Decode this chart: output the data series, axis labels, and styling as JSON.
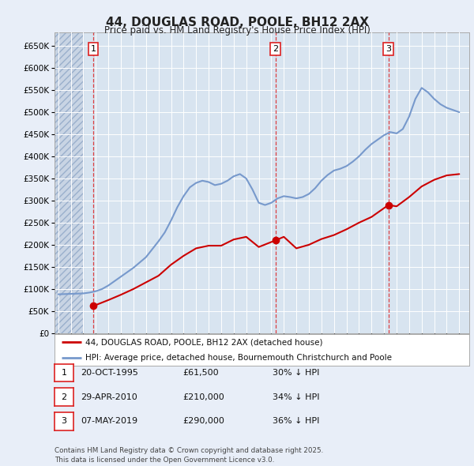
{
  "title": "44, DOUGLAS ROAD, POOLE, BH12 2AX",
  "subtitle": "Price paid vs. HM Land Registry's House Price Index (HPI)",
  "bg_color": "#e8eef8",
  "plot_bg": "#d8e4f0",
  "grid_color": "#ffffff",
  "hatch_color": "#c8d4e4",
  "ylim": [
    0,
    680000
  ],
  "yticks": [
    0,
    50000,
    100000,
    150000,
    200000,
    250000,
    300000,
    350000,
    400000,
    450000,
    500000,
    550000,
    600000,
    650000
  ],
  "ytick_labels": [
    "£0",
    "£50K",
    "£100K",
    "£150K",
    "£200K",
    "£250K",
    "£300K",
    "£350K",
    "£400K",
    "£450K",
    "£500K",
    "£550K",
    "£600K",
    "£650K"
  ],
  "xlim_start": 1992.7,
  "xlim_end": 2025.8,
  "sale_dates": [
    1995.8,
    2010.33,
    2019.35
  ],
  "sale_prices": [
    61500,
    210000,
    290000
  ],
  "sale_labels": [
    "1",
    "2",
    "3"
  ],
  "red_line_color": "#cc0000",
  "blue_line_color": "#7799cc",
  "marker_color": "#cc0000",
  "dashed_line_color": "#dd2222",
  "property_label": "44, DOUGLAS ROAD, POOLE, BH12 2AX (detached house)",
  "hpi_label": "HPI: Average price, detached house, Bournemouth Christchurch and Poole",
  "table_rows": [
    {
      "num": "1",
      "date": "20-OCT-1995",
      "price": "£61,500",
      "hpi": "30% ↓ HPI"
    },
    {
      "num": "2",
      "date": "29-APR-2010",
      "price": "£210,000",
      "hpi": "34% ↓ HPI"
    },
    {
      "num": "3",
      "date": "07-MAY-2019",
      "price": "£290,000",
      "hpi": "36% ↓ HPI"
    }
  ],
  "footer": "Contains HM Land Registry data © Crown copyright and database right 2025.\nThis data is licensed under the Open Government Licence v3.0.",
  "hpi_x": [
    1993.0,
    1993.5,
    1994.0,
    1994.5,
    1995.0,
    1995.5,
    1996.0,
    1996.5,
    1997.0,
    1997.5,
    1998.0,
    1998.5,
    1999.0,
    1999.5,
    2000.0,
    2000.5,
    2001.0,
    2001.5,
    2002.0,
    2002.5,
    2003.0,
    2003.5,
    2004.0,
    2004.5,
    2005.0,
    2005.5,
    2006.0,
    2006.5,
    2007.0,
    2007.5,
    2008.0,
    2008.5,
    2009.0,
    2009.5,
    2010.0,
    2010.5,
    2011.0,
    2011.5,
    2012.0,
    2012.5,
    2013.0,
    2013.5,
    2014.0,
    2014.5,
    2015.0,
    2015.5,
    2016.0,
    2016.5,
    2017.0,
    2017.5,
    2018.0,
    2018.5,
    2019.0,
    2019.5,
    2020.0,
    2020.5,
    2021.0,
    2021.5,
    2022.0,
    2022.5,
    2023.0,
    2023.5,
    2024.0,
    2024.5,
    2025.0
  ],
  "hpi_y": [
    88000,
    88500,
    89000,
    89500,
    90000,
    92000,
    95000,
    100000,
    108000,
    118000,
    128000,
    138000,
    148000,
    160000,
    172000,
    190000,
    208000,
    228000,
    255000,
    285000,
    310000,
    330000,
    340000,
    345000,
    342000,
    335000,
    338000,
    345000,
    355000,
    360000,
    350000,
    325000,
    295000,
    290000,
    295000,
    305000,
    310000,
    308000,
    305000,
    308000,
    315000,
    328000,
    345000,
    358000,
    368000,
    372000,
    378000,
    388000,
    400000,
    415000,
    428000,
    438000,
    448000,
    455000,
    452000,
    462000,
    490000,
    530000,
    555000,
    545000,
    530000,
    518000,
    510000,
    505000,
    500000
  ],
  "prop_x": [
    1995.8,
    1996.2,
    1997.0,
    1998.0,
    1999.0,
    2000.0,
    2001.0,
    2002.0,
    2003.0,
    2004.0,
    2005.0,
    2006.0,
    2007.0,
    2008.0,
    2009.0,
    2010.33,
    2011.0,
    2012.0,
    2013.0,
    2014.0,
    2015.0,
    2016.0,
    2017.0,
    2018.0,
    2019.35,
    2020.0,
    2021.0,
    2022.0,
    2023.0,
    2024.0,
    2025.0
  ],
  "prop_y": [
    61500,
    66000,
    75000,
    87000,
    100000,
    115000,
    130000,
    155000,
    175000,
    192000,
    198000,
    198000,
    212000,
    218000,
    195000,
    210000,
    218000,
    192000,
    200000,
    213000,
    222000,
    235000,
    250000,
    263000,
    290000,
    287000,
    308000,
    332000,
    347000,
    357000,
    360000
  ]
}
